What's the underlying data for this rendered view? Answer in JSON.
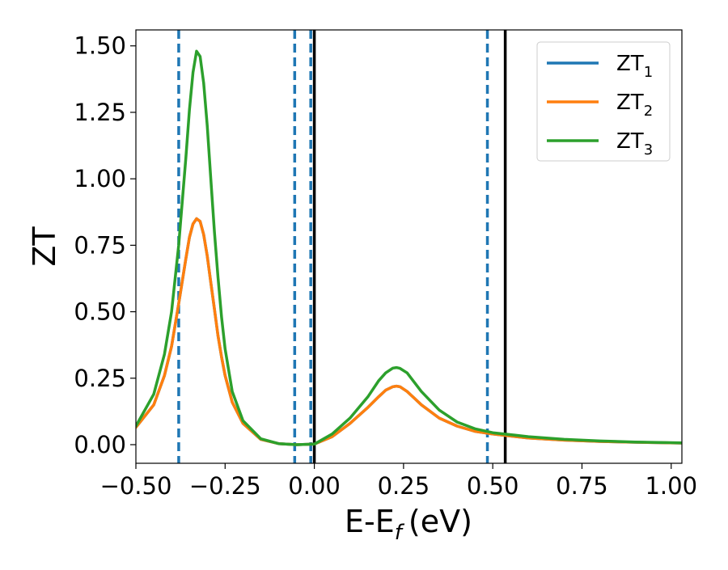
{
  "chart_data": {
    "type": "line",
    "title": "",
    "xlabel": "E-E",
    "xlabel_sub": "f",
    "xlabel_unit": "(eV)",
    "ylabel": "ZT",
    "xlim": [
      -0.5,
      1.03
    ],
    "ylim": [
      -0.07,
      1.56
    ],
    "xticks": [
      -0.5,
      -0.25,
      0.0,
      0.25,
      0.5,
      0.75,
      1.0
    ],
    "xtick_labels": [
      "−0.50",
      "−0.25",
      "0.00",
      "0.25",
      "0.50",
      "0.75",
      "1.00"
    ],
    "yticks": [
      0.0,
      0.25,
      0.5,
      0.75,
      1.0,
      1.25,
      1.5
    ],
    "ytick_labels": [
      "0.00",
      "0.25",
      "0.50",
      "0.75",
      "1.00",
      "1.25",
      "1.50"
    ],
    "grid": false,
    "legend_position": "top-right",
    "series": [
      {
        "name": "ZT",
        "name_sub": "1",
        "color": "#1f77b4",
        "x": [
          -0.5,
          -0.45,
          -0.42,
          -0.4,
          -0.38,
          -0.36,
          -0.35,
          -0.34,
          -0.33,
          -0.32,
          -0.31,
          -0.3,
          -0.29,
          -0.28,
          -0.27,
          -0.26,
          -0.25,
          -0.23,
          -0.2,
          -0.15,
          -0.1,
          -0.05,
          0.0,
          0.05,
          0.1,
          0.15,
          0.18,
          0.2,
          0.22,
          0.23,
          0.24,
          0.26,
          0.28,
          0.3,
          0.35,
          0.4,
          0.45,
          0.5,
          0.6,
          0.7,
          0.8,
          0.9,
          1.03
        ],
        "y": [
          0.065,
          0.15,
          0.26,
          0.37,
          0.53,
          0.7,
          0.78,
          0.83,
          0.85,
          0.84,
          0.79,
          0.71,
          0.61,
          0.51,
          0.41,
          0.33,
          0.26,
          0.16,
          0.08,
          0.02,
          0.004,
          0.0,
          0.002,
          0.03,
          0.08,
          0.14,
          0.18,
          0.205,
          0.218,
          0.22,
          0.218,
          0.2,
          0.175,
          0.15,
          0.1,
          0.07,
          0.05,
          0.04,
          0.025,
          0.017,
          0.012,
          0.009,
          0.006
        ]
      },
      {
        "name": "ZT",
        "name_sub": "2",
        "color": "#ff7f0e",
        "x": [
          -0.5,
          -0.45,
          -0.42,
          -0.4,
          -0.38,
          -0.36,
          -0.35,
          -0.34,
          -0.33,
          -0.32,
          -0.31,
          -0.3,
          -0.29,
          -0.28,
          -0.27,
          -0.26,
          -0.25,
          -0.23,
          -0.2,
          -0.15,
          -0.1,
          -0.05,
          0.0,
          0.05,
          0.1,
          0.15,
          0.18,
          0.2,
          0.22,
          0.23,
          0.24,
          0.26,
          0.28,
          0.3,
          0.35,
          0.4,
          0.45,
          0.5,
          0.6,
          0.7,
          0.8,
          0.9,
          1.03
        ],
        "y": [
          0.065,
          0.15,
          0.26,
          0.37,
          0.53,
          0.7,
          0.78,
          0.83,
          0.85,
          0.84,
          0.79,
          0.71,
          0.61,
          0.51,
          0.41,
          0.33,
          0.26,
          0.16,
          0.08,
          0.02,
          0.004,
          0.0,
          0.002,
          0.03,
          0.08,
          0.14,
          0.18,
          0.205,
          0.218,
          0.22,
          0.218,
          0.2,
          0.175,
          0.15,
          0.1,
          0.07,
          0.05,
          0.04,
          0.025,
          0.017,
          0.012,
          0.009,
          0.006
        ]
      },
      {
        "name": "ZT",
        "name_sub": "3",
        "color": "#2ca02c",
        "x": [
          -0.5,
          -0.45,
          -0.42,
          -0.4,
          -0.38,
          -0.36,
          -0.35,
          -0.34,
          -0.33,
          -0.32,
          -0.31,
          -0.3,
          -0.29,
          -0.28,
          -0.27,
          -0.26,
          -0.25,
          -0.23,
          -0.2,
          -0.15,
          -0.1,
          -0.05,
          0.0,
          0.05,
          0.1,
          0.15,
          0.18,
          0.2,
          0.22,
          0.23,
          0.24,
          0.26,
          0.28,
          0.3,
          0.35,
          0.4,
          0.45,
          0.5,
          0.6,
          0.7,
          0.8,
          0.9,
          1.03
        ],
        "y": [
          0.07,
          0.19,
          0.34,
          0.5,
          0.75,
          1.08,
          1.26,
          1.4,
          1.48,
          1.46,
          1.36,
          1.2,
          1.0,
          0.8,
          0.63,
          0.48,
          0.36,
          0.2,
          0.09,
          0.022,
          0.004,
          0.0,
          0.002,
          0.04,
          0.1,
          0.18,
          0.24,
          0.27,
          0.288,
          0.29,
          0.287,
          0.27,
          0.235,
          0.2,
          0.13,
          0.085,
          0.06,
          0.045,
          0.03,
          0.02,
          0.014,
          0.01,
          0.007
        ]
      }
    ],
    "vlines": [
      {
        "x": -0.38,
        "color": "#1f77b4",
        "style": "dashed"
      },
      {
        "x": -0.055,
        "color": "#1f77b4",
        "style": "dashed"
      },
      {
        "x": -0.01,
        "color": "#1f77b4",
        "style": "dashed"
      },
      {
        "x": 0.0,
        "color": "#000000",
        "style": "solid"
      },
      {
        "x": 0.485,
        "color": "#1f77b4",
        "style": "dashed"
      },
      {
        "x": 0.535,
        "color": "#000000",
        "style": "solid"
      }
    ]
  }
}
